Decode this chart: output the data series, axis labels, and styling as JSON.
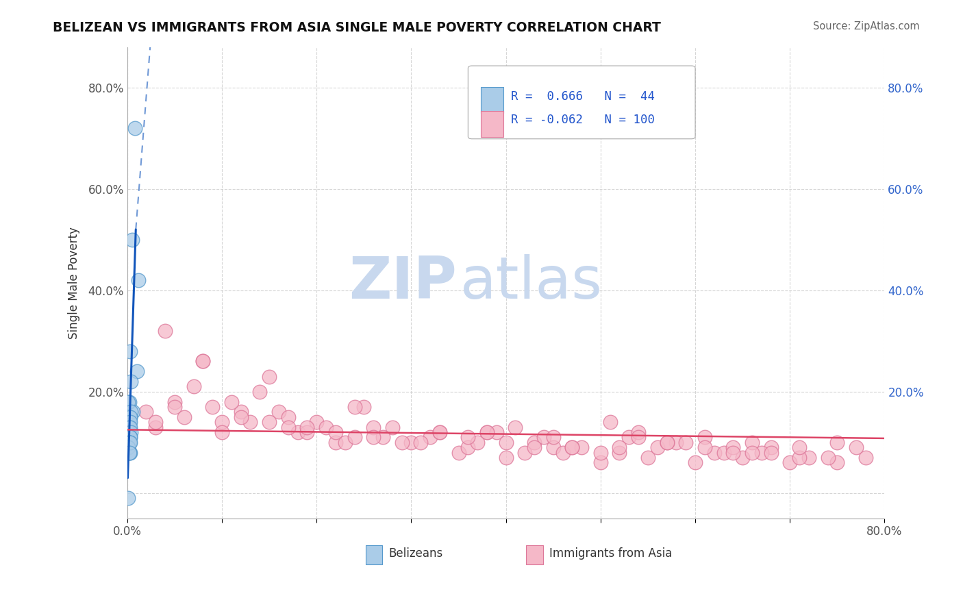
{
  "title": "BELIZEAN VS IMMIGRANTS FROM ASIA SINGLE MALE POVERTY CORRELATION CHART",
  "source": "Source: ZipAtlas.com",
  "ylabel": "Single Male Poverty",
  "xlim": [
    0.0,
    0.8
  ],
  "ylim": [
    -0.05,
    0.88
  ],
  "x_ticks": [
    0.0,
    0.1,
    0.2,
    0.3,
    0.4,
    0.5,
    0.6,
    0.7,
    0.8
  ],
  "y_ticks": [
    0.0,
    0.2,
    0.4,
    0.6,
    0.8
  ],
  "belizean_R": 0.666,
  "belizean_N": 44,
  "asia_R": -0.062,
  "asia_N": 100,
  "belizean_color": "#aacce8",
  "belizean_edge": "#5599cc",
  "asia_color": "#f5b8c8",
  "asia_edge": "#dd7799",
  "trendline_belizean_color": "#1155bb",
  "trendline_asia_color": "#dd4466",
  "watermark_zip_color": "#c8d8ee",
  "watermark_atlas_color": "#c8d8ee",
  "background_color": "#ffffff",
  "belizean_x": [
    0.008,
    0.012,
    0.005,
    0.003,
    0.01,
    0.002,
    0.004,
    0.006,
    0.001,
    0.003,
    0.002,
    0.001,
    0.004,
    0.003,
    0.002,
    0.001,
    0.003,
    0.002,
    0.001,
    0.002,
    0.001,
    0.003,
    0.002,
    0.001,
    0.004,
    0.002,
    0.001,
    0.003,
    0.002,
    0.001,
    0.002,
    0.001,
    0.003,
    0.002,
    0.001,
    0.002,
    0.001,
    0.003,
    0.002,
    0.001,
    0.002,
    0.001,
    0.003,
    0.002
  ],
  "belizean_y": [
    0.72,
    0.42,
    0.5,
    0.28,
    0.24,
    0.18,
    0.22,
    0.16,
    0.18,
    0.15,
    0.14,
    0.13,
    0.16,
    0.15,
    0.13,
    0.12,
    0.14,
    0.13,
    0.12,
    0.11,
    0.12,
    0.13,
    0.11,
    0.1,
    0.12,
    0.11,
    0.1,
    0.11,
    0.1,
    0.09,
    0.1,
    0.09,
    0.11,
    0.1,
    0.09,
    0.1,
    0.09,
    0.08,
    0.1,
    0.09,
    0.08,
    -0.01,
    0.1,
    0.08
  ],
  "asia_x": [
    0.05,
    0.1,
    0.12,
    0.18,
    0.22,
    0.25,
    0.15,
    0.08,
    0.3,
    0.35,
    0.28,
    0.2,
    0.4,
    0.45,
    0.38,
    0.5,
    0.42,
    0.55,
    0.48,
    0.6,
    0.52,
    0.65,
    0.58,
    0.7,
    0.62,
    0.72,
    0.68,
    0.75,
    0.03,
    0.06,
    0.09,
    0.13,
    0.16,
    0.19,
    0.23,
    0.26,
    0.32,
    0.36,
    0.39,
    0.43,
    0.46,
    0.53,
    0.56,
    0.63,
    0.66,
    0.71,
    0.04,
    0.07,
    0.11,
    0.14,
    0.17,
    0.21,
    0.24,
    0.27,
    0.33,
    0.37,
    0.41,
    0.44,
    0.47,
    0.51,
    0.54,
    0.57,
    0.61,
    0.64,
    0.67,
    0.74,
    0.77,
    0.02,
    0.08,
    0.15,
    0.22,
    0.29,
    0.36,
    0.43,
    0.5,
    0.57,
    0.64,
    0.71,
    0.78,
    0.05,
    0.12,
    0.19,
    0.26,
    0.33,
    0.4,
    0.47,
    0.54,
    0.61,
    0.68,
    0.75,
    0.03,
    0.1,
    0.17,
    0.24,
    0.31,
    0.38,
    0.45,
    0.52,
    0.59,
    0.66
  ],
  "asia_y": [
    0.18,
    0.14,
    0.16,
    0.12,
    0.1,
    0.17,
    0.23,
    0.26,
    0.1,
    0.08,
    0.13,
    0.14,
    0.07,
    0.09,
    0.12,
    0.06,
    0.08,
    0.07,
    0.09,
    0.06,
    0.08,
    0.07,
    0.1,
    0.06,
    0.08,
    0.07,
    0.09,
    0.06,
    0.13,
    0.15,
    0.17,
    0.14,
    0.16,
    0.12,
    0.1,
    0.13,
    0.11,
    0.09,
    0.12,
    0.1,
    0.08,
    0.11,
    0.09,
    0.08,
    0.1,
    0.07,
    0.32,
    0.21,
    0.18,
    0.2,
    0.15,
    0.13,
    0.17,
    0.11,
    0.12,
    0.1,
    0.13,
    0.11,
    0.09,
    0.14,
    0.12,
    0.1,
    0.11,
    0.09,
    0.08,
    0.07,
    0.09,
    0.16,
    0.26,
    0.14,
    0.12,
    0.1,
    0.11,
    0.09,
    0.08,
    0.1,
    0.08,
    0.09,
    0.07,
    0.17,
    0.15,
    0.13,
    0.11,
    0.12,
    0.1,
    0.09,
    0.11,
    0.09,
    0.08,
    0.1,
    0.14,
    0.12,
    0.13,
    0.11,
    0.1,
    0.12,
    0.11,
    0.09,
    0.1,
    0.08
  ],
  "legend_R1": "R =  0.666",
  "legend_N1": "N =  44",
  "legend_R2": "R = -0.062",
  "legend_N2": "N = 100"
}
